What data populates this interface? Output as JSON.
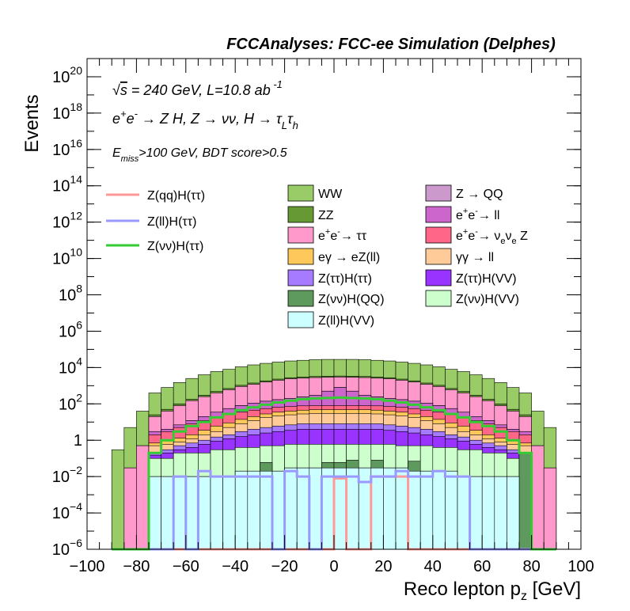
{
  "chart_data": {
    "type": "histogram",
    "title": "FCCAnalyses: FCC-ee Simulation (Delphes)",
    "xlabel": "Reco lepton p_z [GeV]",
    "ylabel": "Events",
    "log_y": true,
    "xlim": [
      -100,
      100
    ],
    "ylim": [
      1e-06,
      1e+21
    ],
    "x_ticks": [
      -100,
      -80,
      -60,
      -40,
      -20,
      0,
      20,
      40,
      60,
      80,
      100
    ],
    "y_ticks": [
      "10^-6",
      "10^-4",
      "10^-2",
      "1",
      "10^2",
      "10^4",
      "10^6",
      "10^8",
      "10^10",
      "10^12",
      "10^14",
      "10^16",
      "10^18",
      "10^20"
    ],
    "annotations": [
      "√s = 240 GeV, L=10.8 ab^-1",
      "e+e- → Z H, Z → νν, H → τL τh",
      "E_miss>100 GeV, BDT score>0.5"
    ],
    "legend_position": "middle",
    "bin_edges": [
      -90,
      -85,
      -80,
      -75,
      -70,
      -65,
      -60,
      -55,
      -50,
      -45,
      -40,
      -35,
      -30,
      -25,
      -20,
      -15,
      -10,
      -5,
      0,
      5,
      10,
      15,
      20,
      25,
      30,
      35,
      40,
      45,
      50,
      55,
      60,
      65,
      70,
      75,
      80,
      85,
      90
    ],
    "stack": [
      {
        "name": "Z(ll)H(VV)",
        "color": "#ccffff",
        "total": [
          0,
          0,
          0,
          0.01,
          0.01,
          0.01,
          0.01,
          0.01,
          0.01,
          0.01,
          0.02,
          0.02,
          0.02,
          0.02,
          0.03,
          0.03,
          0.03,
          0.03,
          0.03,
          0.03,
          0.03,
          0.03,
          0.03,
          0.03,
          0.02,
          0.02,
          0.02,
          0.02,
          0.01,
          0.01,
          0.01,
          0.01,
          0.01,
          0,
          0,
          0
        ]
      },
      {
        "name": "Z(νν)H(QQ)",
        "color": "#5e9a5e",
        "total": [
          0,
          0,
          0,
          0.01,
          0.01,
          0.01,
          0.01,
          0.01,
          0.01,
          0.01,
          0.02,
          0.02,
          0.06,
          0.02,
          0.03,
          0.03,
          0.03,
          0.06,
          0.06,
          0.08,
          0.03,
          0.08,
          0.03,
          0.03,
          0.07,
          0.02,
          0.02,
          0.02,
          0.01,
          0.01,
          0.01,
          0.01,
          0.01,
          0.2,
          0,
          0
        ]
      },
      {
        "name": "Z(νν)H(VV)",
        "color": "#ccffcc",
        "total": [
          0,
          0,
          0,
          0.1,
          0.1,
          0.2,
          0.2,
          0.2,
          0.3,
          0.3,
          0.4,
          0.4,
          0.5,
          0.5,
          0.6,
          0.6,
          0.6,
          0.6,
          0.6,
          0.6,
          0.6,
          0.6,
          0.6,
          0.5,
          0.5,
          0.5,
          0.4,
          0.4,
          0.3,
          0.3,
          0.2,
          0.2,
          0.1,
          0.1,
          0,
          0
        ]
      },
      {
        "name": "Z(ττ)H(VV)",
        "color": "#9933ff",
        "total": [
          0,
          0,
          0,
          0.15,
          0.2,
          0.3,
          0.4,
          0.6,
          0.9,
          1.2,
          1.6,
          2,
          2.5,
          3,
          3.5,
          4,
          4,
          4,
          4,
          4,
          4,
          4,
          3.5,
          3,
          2.5,
          2,
          1.6,
          1.2,
          0.9,
          0.6,
          0.4,
          0.3,
          0.2,
          0.15,
          0,
          0
        ]
      },
      {
        "name": "Z(ττ)H(ττ)",
        "color": "#a77bff",
        "total": [
          0,
          0,
          0,
          0.2,
          0.3,
          0.5,
          0.7,
          1,
          1.5,
          2,
          3,
          4,
          5,
          6,
          7,
          8,
          8,
          8,
          8,
          8,
          8,
          8,
          7,
          6,
          5,
          4,
          3,
          2,
          1.5,
          1,
          0.7,
          0.5,
          0.3,
          0.2,
          0,
          0
        ]
      },
      {
        "name": "γγ → ll",
        "color": "#ffcc99",
        "total": [
          0,
          0,
          0,
          0.5,
          0.6,
          0.8,
          1.2,
          2,
          3,
          5,
          8,
          12,
          18,
          22,
          25,
          28,
          30,
          30,
          30,
          30,
          30,
          28,
          25,
          22,
          18,
          12,
          8,
          5,
          3,
          2,
          1.2,
          0.8,
          0.6,
          0.5,
          0,
          0
        ]
      },
      {
        "name": "eγ → eZ(ll)",
        "color": "#ffc85a",
        "total": [
          0,
          0,
          0,
          0.7,
          0.9,
          1.3,
          2,
          3.5,
          6,
          9,
          14,
          20,
          28,
          35,
          40,
          45,
          48,
          48,
          48,
          48,
          48,
          45,
          40,
          35,
          28,
          20,
          14,
          9,
          6,
          3.5,
          2,
          1.3,
          0.9,
          0.7,
          0,
          0
        ]
      },
      {
        "name": "e+e- → νeνe Z",
        "color": "#ff6688",
        "total": [
          0,
          0,
          0,
          2,
          3,
          5,
          8,
          12,
          18,
          26,
          35,
          45,
          55,
          65,
          72,
          78,
          80,
          80,
          80,
          80,
          80,
          78,
          72,
          65,
          55,
          45,
          35,
          26,
          18,
          12,
          8,
          5,
          3,
          2,
          0,
          0
        ]
      },
      {
        "name": "e+e- → ll",
        "color": "#cc66cc",
        "total": [
          0,
          0,
          0,
          3,
          4,
          7,
          12,
          20,
          35,
          55,
          80,
          110,
          140,
          170,
          200,
          240,
          300,
          500,
          800,
          500,
          300,
          240,
          200,
          170,
          140,
          110,
          80,
          55,
          35,
          20,
          12,
          7,
          4,
          3,
          0,
          0
        ]
      },
      {
        "name": "Z → QQ",
        "color": "#cc99cc",
        "total": [
          0,
          0,
          0,
          3,
          4,
          7,
          12,
          20,
          35,
          55,
          80,
          110,
          140,
          170,
          200,
          240,
          300,
          500,
          800,
          500,
          300,
          240,
          200,
          170,
          140,
          110,
          80,
          55,
          35,
          20,
          12,
          7,
          4,
          3,
          0,
          0
        ]
      },
      {
        "name": "e+e- → ττ",
        "color": "#ff99cc",
        "total": [
          0,
          0.03,
          0.5,
          20,
          40,
          80,
          150,
          250,
          400,
          600,
          900,
          1200,
          1600,
          2000,
          2400,
          2600,
          2800,
          2900,
          3000,
          2900,
          2800,
          2600,
          2400,
          2000,
          1600,
          1200,
          900,
          600,
          400,
          250,
          150,
          80,
          40,
          20,
          0.5,
          0.03
        ]
      },
      {
        "name": "ZZ",
        "color": "#669933",
        "total": [
          0,
          0.03,
          0.5,
          25,
          50,
          100,
          180,
          300,
          480,
          700,
          1050,
          1400,
          1850,
          2300,
          2750,
          3000,
          3200,
          3300,
          3400,
          3300,
          3200,
          3000,
          2750,
          2300,
          1850,
          1400,
          1050,
          700,
          480,
          300,
          180,
          100,
          50,
          25,
          0.5,
          0.03
        ]
      },
      {
        "name": "WW",
        "color": "#99cc66",
        "total": [
          0.3,
          5,
          40,
          400,
          800,
          1500,
          2500,
          4000,
          6000,
          8000,
          11000,
          14000,
          17000,
          20000,
          23000,
          25000,
          27000,
          28000,
          28000,
          28000,
          27000,
          25000,
          23000,
          20000,
          17000,
          14000,
          11000,
          8000,
          6000,
          4000,
          2500,
          1500,
          800,
          400,
          40,
          5
        ]
      }
    ],
    "signals": [
      {
        "name": "Z(qq)H(ττ)",
        "color": "#ff9999",
        "values": [
          0,
          0,
          0,
          0,
          0,
          0,
          0,
          0,
          0,
          0,
          0,
          0,
          0,
          0,
          0,
          0,
          0,
          0,
          0.008,
          0,
          0,
          0.01,
          0.01,
          0.01,
          0,
          0,
          0,
          0,
          0,
          0,
          0,
          0,
          0,
          0,
          0,
          0
        ]
      },
      {
        "name": "Z(ll)H(ττ)",
        "color": "#9999ff",
        "values": [
          0,
          0,
          0,
          0,
          0,
          0.01,
          0,
          0.02,
          0.01,
          0.01,
          0.01,
          0.01,
          0.01,
          0,
          0.02,
          0.01,
          0,
          0.01,
          0.01,
          0.01,
          0.005,
          0.01,
          0.01,
          0.02,
          0.01,
          0.01,
          0.02,
          0.01,
          0.01,
          0,
          0,
          0,
          0,
          0,
          0,
          0
        ]
      },
      {
        "name": "Z(νν)H(ττ)",
        "color": "#33cc33",
        "values": [
          0,
          0,
          0,
          0.2,
          1,
          3,
          6,
          10,
          18,
          28,
          45,
          65,
          90,
          120,
          150,
          180,
          200,
          210,
          220,
          210,
          200,
          180,
          150,
          120,
          90,
          65,
          45,
          28,
          18,
          10,
          6,
          3,
          1,
          0.2,
          0,
          0
        ]
      }
    ],
    "legend_left": [
      "Z(qq)H(ττ)",
      "Z(ll)H(ττ)",
      "Z(νν)H(ττ)"
    ],
    "legend_mid": [
      "WW",
      "ZZ",
      "e+e- → ττ",
      "eγ → eZ(ll)",
      "Z(ττ)H(ττ)",
      "Z(νν)H(QQ)",
      "Z(ll)H(VV)"
    ],
    "legend_right": [
      "Z → QQ",
      "e+e- → ll",
      "e+e- → νeνe Z",
      "γγ → ll",
      "Z(ττ)H(VV)",
      "Z(νν)H(VV)"
    ]
  },
  "colors": {
    "frame": "#000000",
    "background": "#ffffff"
  }
}
